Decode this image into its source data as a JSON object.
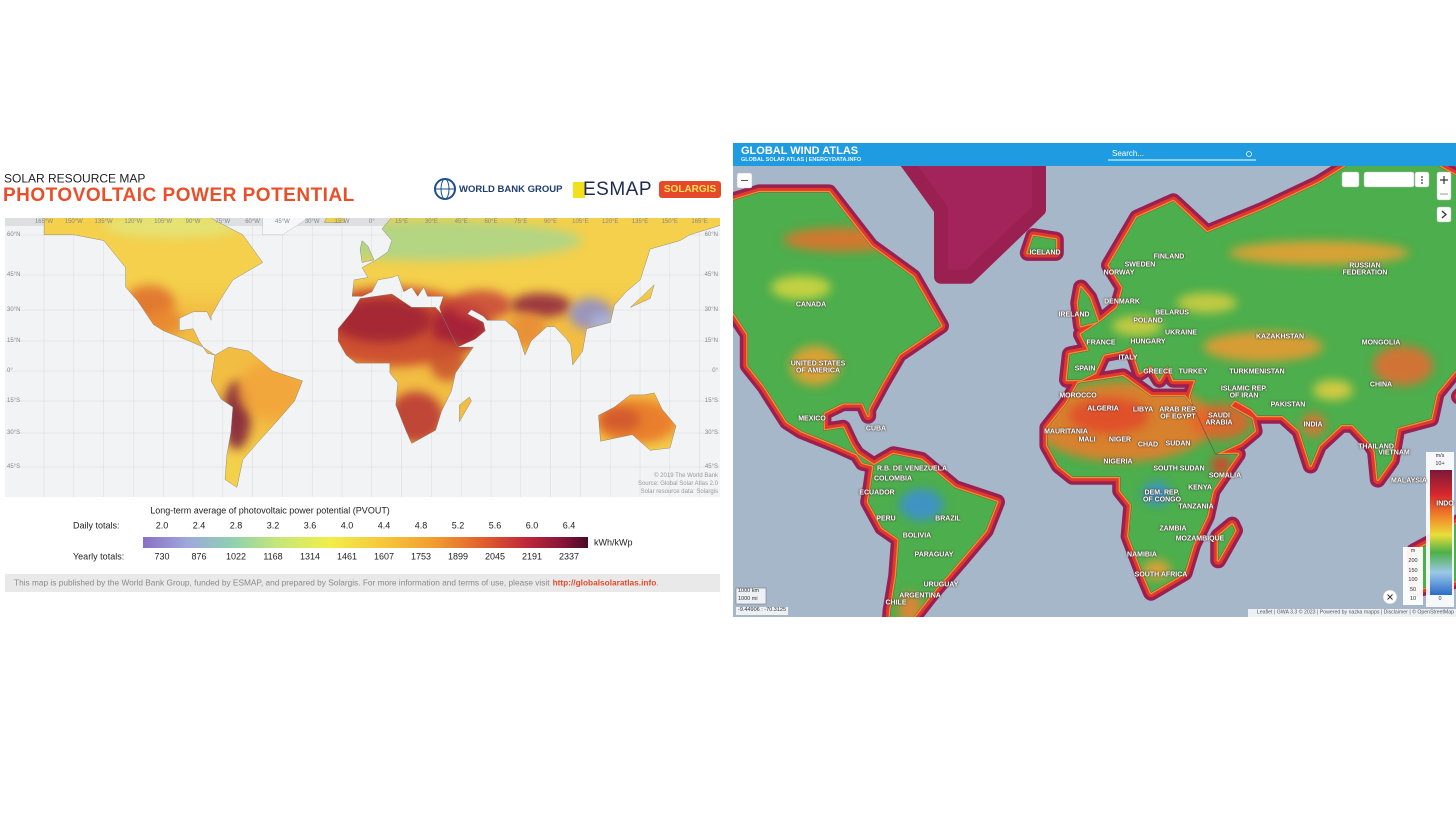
{
  "solar_map": {
    "subtitle": "SOLAR RESOURCE MAP",
    "title": "PHOTOVOLTAIC POWER POTENTIAL",
    "logos": [
      "WORLD BANK GROUP",
      "ESMAP",
      "SOLARGIS"
    ],
    "longitudes": [
      "165°W",
      "150°W",
      "135°W",
      "120°W",
      "105°W",
      "90°W",
      "75°W",
      "60°W",
      "45°W",
      "30°W",
      "15°W",
      "0°",
      "15°E",
      "30°E",
      "45°E",
      "60°E",
      "75°E",
      "90°E",
      "105°E",
      "120°E",
      "135°E",
      "150°E",
      "165°E"
    ],
    "latitudes": [
      "60°N",
      "45°N",
      "30°N",
      "15°N",
      "0°",
      "15°S",
      "30°S",
      "45°S"
    ],
    "credits": [
      "© 2019 The World Bank",
      "Source: Global Solar Atlas 2.0",
      "Solar resource data: Solargis"
    ],
    "legend": {
      "title": "Long-term average of photovoltaic power potential (PVOUT)",
      "daily_label": "Daily totals:",
      "daily": [
        "2.0",
        "2.4",
        "2.8",
        "3.2",
        "3.6",
        "4.0",
        "4.4",
        "4.8",
        "5.2",
        "5.6",
        "6.0",
        "6.4"
      ],
      "unit": "kWh/kWp",
      "yearly_label": "Yearly totals:",
      "yearly": [
        "730",
        "876",
        "1022",
        "1168",
        "1314",
        "1461",
        "1607",
        "1753",
        "1899",
        "2045",
        "2191",
        "2337"
      ]
    },
    "footer": {
      "text": "This map is published by the World Bank Group, funded by ESMAP, and prepared by Solargis. For more information and terms of use, please visit",
      "link": "http://globalsolaratlas.info",
      "end": "."
    }
  },
  "wind_map": {
    "title": "GLOBAL WIND ATLAS",
    "subtitle": "GLOBAL SOLAR ATLAS | ENERGYDATA.INFO",
    "search": "Search...",
    "countries": [
      "CANADA",
      "UNITED STATES OF AMERICA",
      "MEXICO",
      "CUBA",
      "R.B. DE VENEZUELA",
      "COLOMBIA",
      "ECUADOR",
      "PERU",
      "BRAZIL",
      "BOLIVIA",
      "PARAGUAY",
      "URUGUAY",
      "ARGENTINA",
      "CHILE",
      "ICELAND",
      "FINLAND",
      "SWEDEN",
      "NORWAY",
      "RUSSIAN FEDERATION",
      "DENMARK",
      "BELARUS",
      "IRELAND",
      "POLAND",
      "UKRAINE",
      "KAZAKHSTAN",
      "MONGOLIA",
      "FRANCE",
      "HUNGARY",
      "ITALY",
      "SPAIN",
      "GREECE",
      "TURKEY",
      "TURKMENISTAN",
      "CHINA",
      "ISLAMIC REP. OF IRAN",
      "MOROCCO",
      "PAKISTAN",
      "ALGERIA",
      "LIBYA",
      "ARAB REP. OF EGYPT",
      "SAUDI ARABIA",
      "INDIA",
      "MAURITANIA",
      "MALI",
      "NIGER",
      "CHAD",
      "SUDAN",
      "THAILAND",
      "VIETNAM",
      "NIGERIA",
      "SOUTH SUDAN",
      "SOMALIA",
      "KENYA",
      "MALAYSIA",
      "DEM. REP. OF CONGO",
      "TANZANIA",
      "INDO",
      "ZAMBIA",
      "MOZAMBIQUE",
      "NAMIBIA",
      "SOUTH AFRICA"
    ],
    "speed_legend": {
      "unit": "m/s",
      "max": "10+",
      "min": "0"
    },
    "elevation_legend": {
      "unit": "m",
      "ticks": [
        "200",
        "150",
        "100",
        "50",
        "10"
      ]
    },
    "scale": [
      "1000 km",
      "1000 mi"
    ],
    "coordinates": "-9.44906 : -70.3125",
    "attribution": "Leaflet | GWA 3.3 © 2023 | Powered by nazka mapps | Disclaimer | © OpenStreetMap"
  }
}
